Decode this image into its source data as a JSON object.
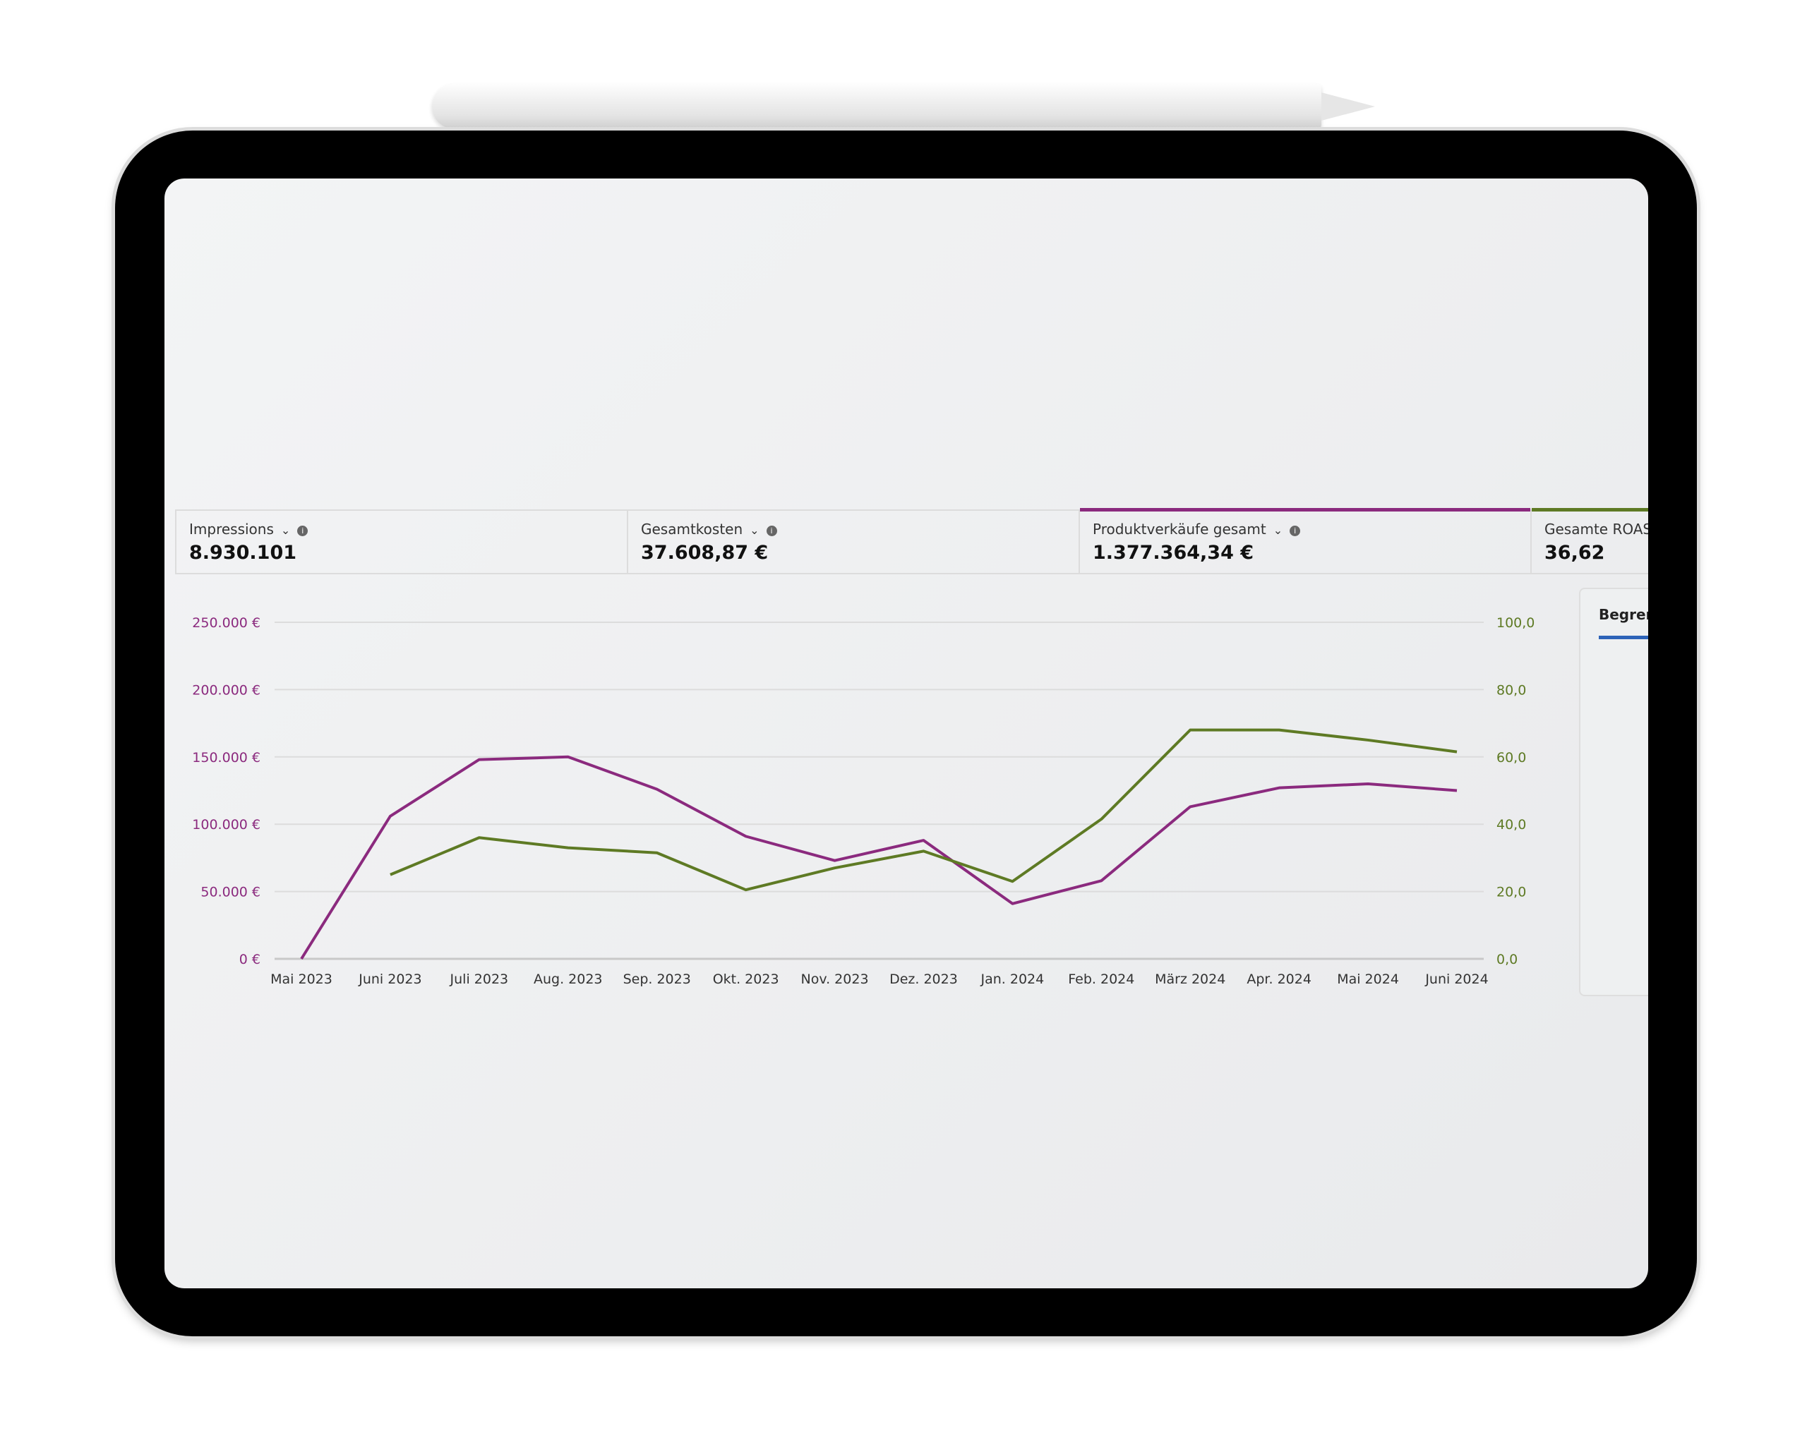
{
  "metrics": [
    {
      "label": "Impressions",
      "value": "8.930.101",
      "selected": false
    },
    {
      "label": "Gesamtkosten",
      "value": "37.608,87 €",
      "selected": false
    },
    {
      "label": "Produktverkäufe gesamt",
      "value": "1.377.364,34 €",
      "selected": true,
      "color": "#8b2a7e"
    },
    {
      "label": "Gesamte ROAS",
      "value": "36,62",
      "selected": true,
      "color": "#5e7a24"
    }
  ],
  "panel": {
    "tab_label": "Begren"
  },
  "icons": {
    "dropdown": "chevron-down-icon",
    "info": "info-icon"
  },
  "chart_data": {
    "type": "line",
    "categories": [
      "Mai 2023",
      "Juni 2023",
      "Juli 2023",
      "Aug. 2023",
      "Sep. 2023",
      "Okt. 2023",
      "Nov. 2023",
      "Dez. 2023",
      "Jan. 2024",
      "Feb. 2024",
      "März 2024",
      "Apr. 2024",
      "Mai 2024",
      "Juni 2024"
    ],
    "y_left": {
      "ticks": [
        "0 €",
        "50.000 €",
        "100.000 €",
        "150.000 €",
        "200.000 €",
        "250.000 €"
      ],
      "range": [
        0,
        250000
      ],
      "color": "#8b2a7e"
    },
    "y_right": {
      "ticks": [
        "0,0",
        "20,0",
        "40,0",
        "60,0",
        "80,0",
        "100,0"
      ],
      "range": [
        0,
        100
      ],
      "color": "#5e7a24"
    },
    "grid": true,
    "series": [
      {
        "axis": "left",
        "color": "#8b2a7e",
        "values": [
          0,
          106000,
          148000,
          150000,
          126000,
          91000,
          73000,
          88000,
          41000,
          58000,
          113000,
          127000,
          130000,
          125000
        ]
      },
      {
        "axis": "right",
        "color": "#5e7a24",
        "values": [
          null,
          25,
          36,
          33,
          31.5,
          20.5,
          27,
          32,
          23,
          41.5,
          68,
          68,
          65,
          61.5
        ]
      }
    ]
  }
}
